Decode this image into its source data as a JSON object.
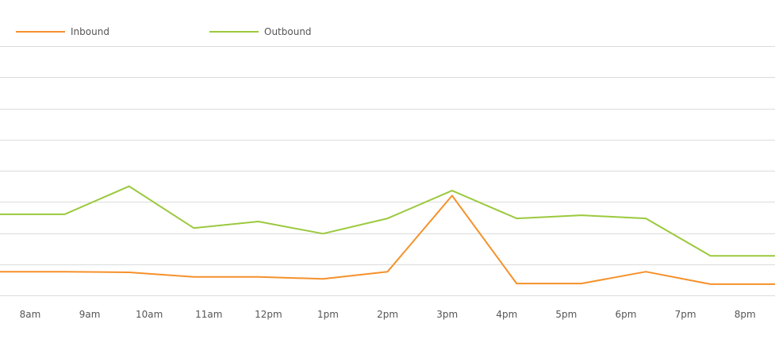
{
  "chart_data": {
    "type": "line",
    "title": "",
    "xlabel": "",
    "ylabel": "",
    "categories": [
      "8am",
      "9am",
      "10am",
      "11am",
      "12pm",
      "1pm",
      "2pm",
      "3pm",
      "4pm",
      "5pm",
      "6pm",
      "7pm",
      "8pm"
    ],
    "ylim": [
      0,
      8
    ],
    "grid": true,
    "legend_position": "top-left",
    "series": [
      {
        "name": "Inbound",
        "color": "#f5912b",
        "values": [
          0.76,
          0.76,
          0.74,
          0.59,
          0.59,
          0.53,
          0.76,
          3.2,
          0.38,
          0.38,
          0.76,
          0.36,
          0.36
        ]
      },
      {
        "name": "Outbound",
        "color": "#9bc93d",
        "values": [
          2.6,
          2.6,
          3.5,
          2.16,
          2.37,
          1.98,
          2.47,
          3.36,
          2.47,
          2.57,
          2.47,
          1.27,
          1.27
        ]
      }
    ]
  }
}
